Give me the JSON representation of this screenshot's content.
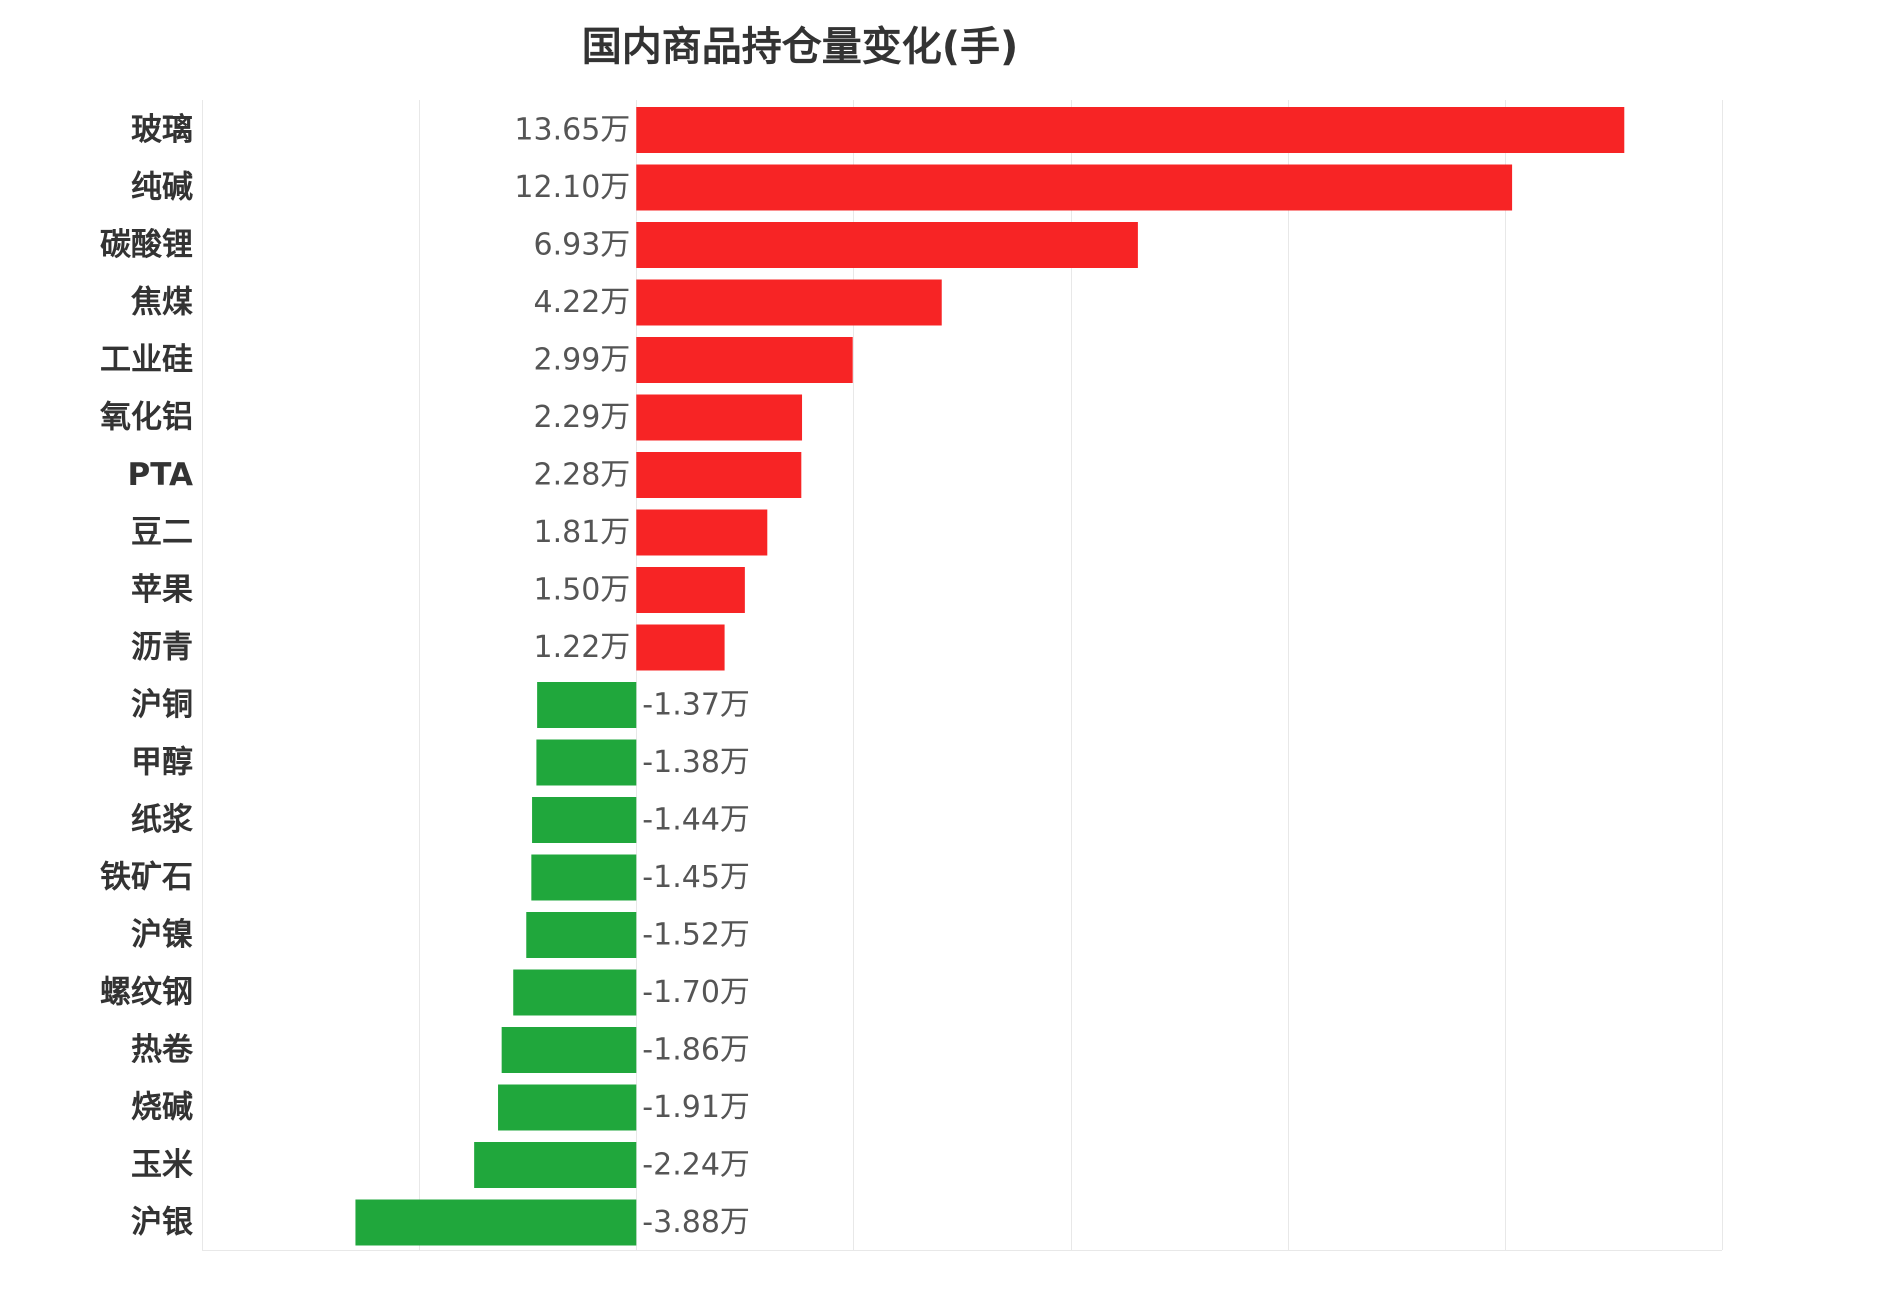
{
  "chart_data": {
    "type": "bar",
    "orientation": "horizontal",
    "title": "国内商品持仓量变化(手)",
    "xlabel": "",
    "ylabel": "",
    "unit_suffix": "万",
    "categories": [
      "玻璃",
      "纯碱",
      "碳酸锂",
      "焦煤",
      "工业硅",
      "氧化铝",
      "PTA",
      "豆二",
      "苹果",
      "沥青",
      "沪铜",
      "甲醇",
      "纸浆",
      "铁矿石",
      "沪镍",
      "螺纹钢",
      "热卷",
      "烧碱",
      "玉米",
      "沪银"
    ],
    "values": [
      13.65,
      12.1,
      6.93,
      4.22,
      2.99,
      2.29,
      2.28,
      1.81,
      1.5,
      1.22,
      -1.37,
      -1.38,
      -1.44,
      -1.45,
      -1.52,
      -1.7,
      -1.86,
      -1.91,
      -2.24,
      -3.88
    ],
    "data_labels": [
      "13.65万",
      "12.10万",
      "6.93万",
      "4.22万",
      "2.99万",
      "2.29万",
      "2.28万",
      "1.81万",
      "1.50万",
      "1.22万",
      "-1.37万",
      "-1.38万",
      "-1.44万",
      "-1.45万",
      "-1.52万",
      "-1.70万",
      "-1.86万",
      "-1.91万",
      "-2.24万",
      "-3.88万"
    ],
    "xlim": [
      -6,
      15
    ],
    "grid": true,
    "legend": "none",
    "colors": {
      "positive": "#f72425",
      "negative": "#20a73c",
      "grid": "#e8e8e8",
      "title": "#333333",
      "category_label": "#333333",
      "value_label": "#555555"
    }
  }
}
